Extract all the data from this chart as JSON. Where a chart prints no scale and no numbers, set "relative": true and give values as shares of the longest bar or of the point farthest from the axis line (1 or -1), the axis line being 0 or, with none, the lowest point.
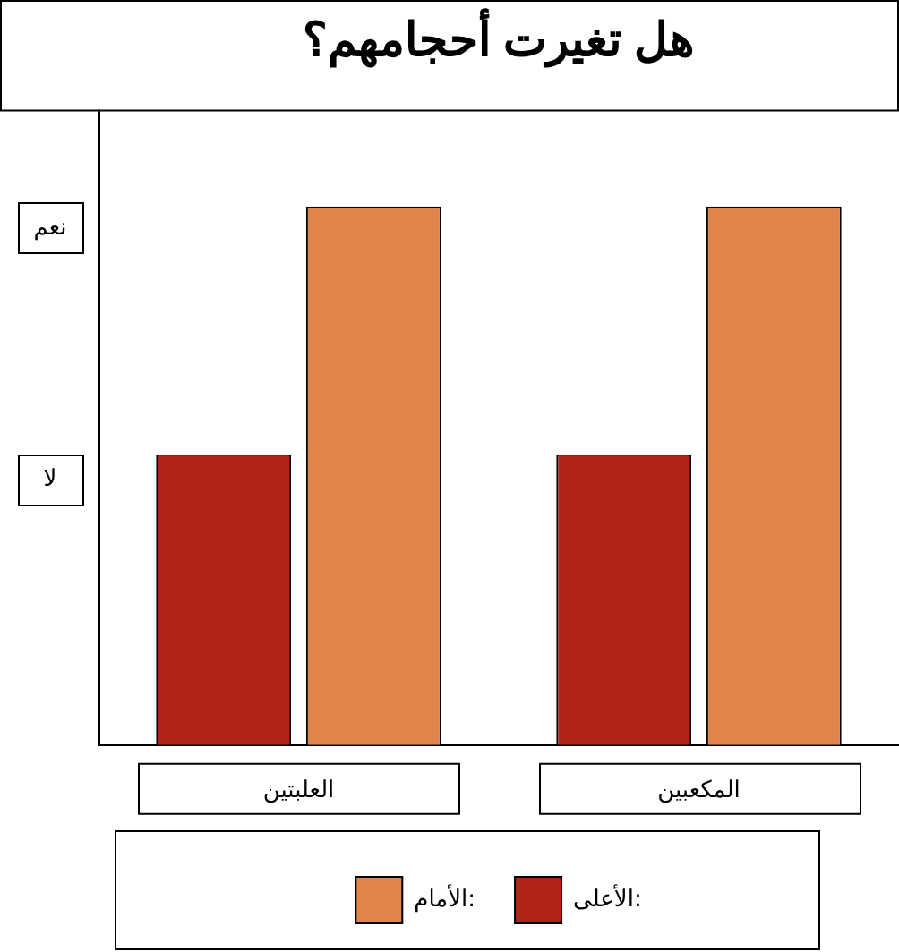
{
  "chart_data": {
    "type": "bar",
    "title": "هل تغيرت أحجامهم؟",
    "categories": [
      "العلبتين",
      "المكعبين"
    ],
    "series": [
      {
        "name": "الأعلى:",
        "color": "#b22418",
        "values": [
          0.54,
          0.54
        ]
      },
      {
        "name": "الأمام:",
        "color": "#e0844a",
        "values": [
          1,
          1
        ]
      }
    ],
    "relative": true,
    "annotations": [
      "نعم",
      "لا"
    ],
    "grid": false,
    "legend": "bottom"
  }
}
